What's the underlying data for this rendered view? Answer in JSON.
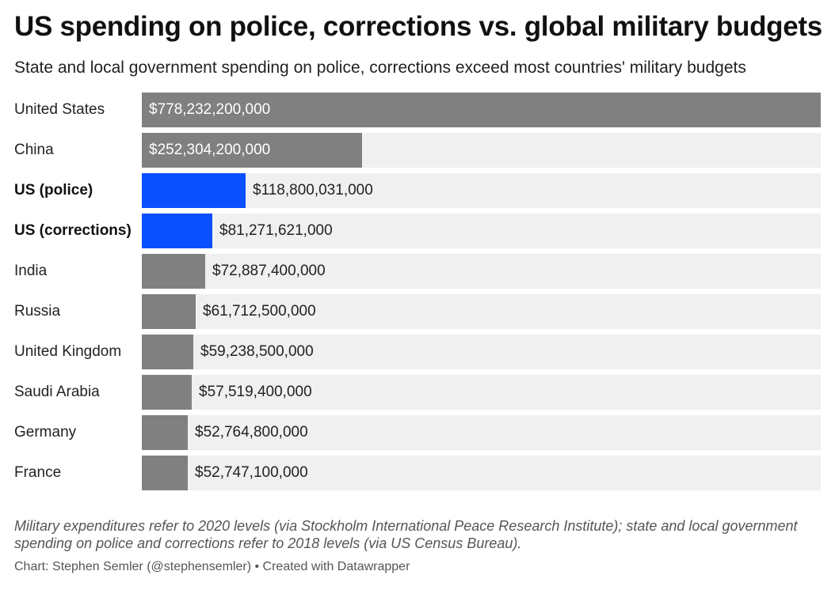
{
  "chart_data": {
    "type": "bar",
    "orientation": "horizontal",
    "title": "US spending on police, corrections vs. global military budgets",
    "subtitle": "State and local government spending on police, corrections exceed most countries' military budgets",
    "categories": [
      "United States",
      "China",
      "US (police)",
      "US (corrections)",
      "India",
      "Russia",
      "United Kingdom",
      "Saudi Arabia",
      "Germany",
      "France"
    ],
    "values": [
      778232200000,
      252304200000,
      118800031000,
      81271621000,
      72887400000,
      61712500000,
      59238500000,
      57519400000,
      52764800000,
      52747100000
    ],
    "value_labels": [
      "$778,232,200,000",
      "$252,304,200,000",
      "$118,800,031,000",
      "$81,271,621,000",
      "$72,887,400,000",
      "$61,712,500,000",
      "$59,238,500,000",
      "$57,519,400,000",
      "$52,764,800,000",
      "$52,747,100,000"
    ],
    "highlighted": [
      false,
      false,
      true,
      true,
      false,
      false,
      false,
      false,
      false,
      false
    ],
    "xlim": [
      0,
      778232200000
    ],
    "grid": false,
    "legend": "none",
    "colors": {
      "default": "#808080",
      "highlight": "#0a50ff",
      "track": "#f0f0f0"
    },
    "notes": "Military expenditures refer to 2020 levels (via Stockholm International Peace Research Institute); state and local government spending on police and corrections refer to 2018 levels (via US Census Bureau).",
    "credit": "Chart: Stephen Semler (@stephensemler) • Created with Datawrapper"
  }
}
